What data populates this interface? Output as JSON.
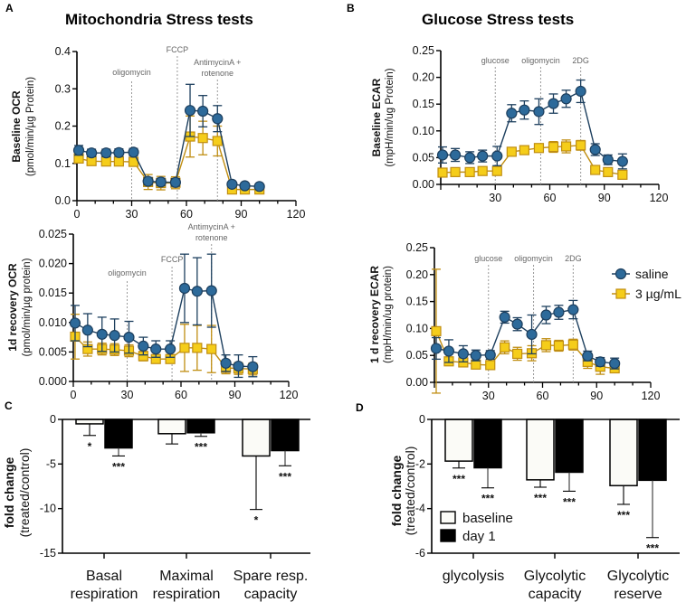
{
  "panels": {
    "A": {
      "letter": "A",
      "title": "Mitochondria Stress tests"
    },
    "B": {
      "letter": "B",
      "title": "Glucose Stress tests"
    },
    "C": {
      "letter": "C"
    },
    "D": {
      "letter": "D"
    }
  },
  "colors": {
    "saline": "#2d6a9a",
    "saline_edge": "#1d3f5e",
    "treated": "#f5cd1a",
    "treated_edge": "#c08e12",
    "baseline_bar": "#fbfbf7",
    "day1_bar": "#000000"
  },
  "chart_data": [
    {
      "type": "line",
      "panel": "A",
      "ylabel": [
        "Baseline OCR",
        "(pmol/min/µg Protein)"
      ],
      "xlim": [
        0,
        120
      ],
      "ylim": [
        0,
        0.4
      ],
      "xticks": [
        "0",
        "30",
        "60",
        "90",
        "120"
      ],
      "yticks": [
        "0.0",
        "0.1",
        "0.2",
        "0.3",
        "0.4"
      ],
      "injections": [
        {
          "x": 30,
          "label": [
            "oligomycin"
          ]
        },
        {
          "x": 55,
          "label": [
            "FCCP"
          ]
        },
        {
          "x": 77,
          "label": [
            "AntimycinA +",
            "rotenone"
          ]
        }
      ],
      "x": [
        1,
        8,
        16,
        23,
        31,
        39,
        46,
        54,
        62,
        69,
        77,
        85,
        92,
        100
      ],
      "series": [
        {
          "name": "saline",
          "y": [
            0.135,
            0.128,
            0.128,
            0.129,
            0.13,
            0.052,
            0.05,
            0.049,
            0.242,
            0.24,
            0.22,
            0.044,
            0.04,
            0.038
          ],
          "err": [
            0.013,
            0.01,
            0.01,
            0.01,
            0.01,
            0.01,
            0.01,
            0.01,
            0.07,
            0.042,
            0.035,
            0.005,
            0.004,
            0.005
          ]
        },
        {
          "name": "3 µg/mL",
          "y": [
            0.113,
            0.106,
            0.105,
            0.105,
            0.104,
            0.05,
            0.047,
            0.048,
            0.172,
            0.168,
            0.16,
            0.03,
            0.03,
            0.03
          ],
          "err": [
            0.01,
            0.01,
            0.01,
            0.01,
            0.01,
            0.02,
            0.018,
            0.016,
            0.055,
            0.045,
            0.04,
            0.005,
            0.005,
            0.005
          ]
        }
      ]
    },
    {
      "type": "line",
      "panel": "A",
      "ylabel": [
        "1d recovery OCR",
        "(pmol/min/µg protein)"
      ],
      "xlim": [
        0,
        120
      ],
      "ylim": [
        0,
        0.025
      ],
      "xticks": [
        "0",
        "30",
        "60",
        "90",
        "120"
      ],
      "yticks": [
        "0.000",
        "0.005",
        "0.010",
        "0.015",
        "0.020",
        "0.025"
      ],
      "injections": [
        {
          "x": 30,
          "label": [
            "oligomycin"
          ]
        },
        {
          "x": 55,
          "label": [
            "FCCP"
          ]
        },
        {
          "x": 77,
          "label": [
            "AntimycinA +",
            "rotenone"
          ]
        }
      ],
      "x": [
        1,
        8,
        16,
        23,
        31,
        39,
        46,
        54,
        62,
        69,
        77,
        85,
        92,
        100
      ],
      "series": [
        {
          "name": "saline",
          "y": [
            0.0099,
            0.0087,
            0.008,
            0.0078,
            0.0075,
            0.006,
            0.0055,
            0.0055,
            0.0158,
            0.0153,
            0.0154,
            0.0031,
            0.0026,
            0.0025
          ],
          "err": [
            0.003,
            0.0028,
            0.0029,
            0.0028,
            0.0027,
            0.0015,
            0.0014,
            0.0014,
            0.0058,
            0.0057,
            0.0062,
            0.0014,
            0.0019,
            0.0017
          ]
        },
        {
          "name": "3 µg/mL",
          "y": [
            0.0076,
            0.0055,
            0.0055,
            0.0054,
            0.0052,
            0.0043,
            0.0038,
            0.0038,
            0.0057,
            0.0057,
            0.0055,
            0.0023,
            0.0022,
            0.0021
          ],
          "err": [
            0.0038,
            0.0012,
            0.001,
            0.001,
            0.001,
            0.0008,
            0.0006,
            0.0006,
            0.004,
            0.0038,
            0.004,
            0.001,
            0.001,
            0.001
          ]
        }
      ]
    },
    {
      "type": "line",
      "panel": "B",
      "ylabel": [
        "Baseline ECAR",
        "(mpH/min/ug Protein)"
      ],
      "xlim": [
        0,
        120
      ],
      "ylim": [
        0,
        0.25
      ],
      "xticks": [
        "",
        "30",
        "60",
        "90",
        "120"
      ],
      "yticks": [
        "0.00",
        "0.05",
        "0.10",
        "0.15",
        "0.20",
        "0.25"
      ],
      "injections": [
        {
          "x": 30,
          "label": [
            "glucose"
          ]
        },
        {
          "x": 55,
          "label": [
            "oligomycin"
          ]
        },
        {
          "x": 77,
          "label": [
            "2DG"
          ]
        }
      ],
      "x": [
        1,
        8,
        16,
        23,
        31,
        39,
        46,
        54,
        62,
        69,
        77,
        85,
        92,
        100
      ],
      "series": [
        {
          "name": "saline",
          "y": [
            0.055,
            0.055,
            0.05,
            0.053,
            0.053,
            0.133,
            0.139,
            0.136,
            0.151,
            0.16,
            0.174,
            0.065,
            0.046,
            0.043
          ],
          "err": [
            0.015,
            0.012,
            0.011,
            0.011,
            0.018,
            0.016,
            0.017,
            0.024,
            0.018,
            0.016,
            0.021,
            0.011,
            0.009,
            0.014
          ]
        },
        {
          "name": "3 µg/mL",
          "y": [
            0.022,
            0.023,
            0.023,
            0.025,
            0.025,
            0.061,
            0.064,
            0.068,
            0.07,
            0.071,
            0.073,
            0.027,
            0.023,
            0.018
          ],
          "err": [
            0.005,
            0.004,
            0.004,
            0.004,
            0.004,
            0.007,
            0.006,
            0.005,
            0.01,
            0.012,
            0.009,
            0.004,
            0.004,
            0.005
          ]
        }
      ]
    },
    {
      "type": "line",
      "panel": "B",
      "ylabel": [
        "1 d recovery ECAR",
        "(mpH/min/ug protein)"
      ],
      "xlim": [
        0,
        120
      ],
      "ylim": [
        0,
        0.25
      ],
      "xticks": [
        "",
        "30",
        "60",
        "90",
        "120"
      ],
      "yticks": [
        "0.00",
        "0.05",
        "0.10",
        "0.15",
        "0.20",
        "0.25"
      ],
      "legend": "top-right",
      "injections": [
        {
          "x": 30,
          "label": [
            "glucose"
          ]
        },
        {
          "x": 55,
          "label": [
            "oligomycin"
          ]
        },
        {
          "x": 77,
          "label": [
            "2DG"
          ]
        }
      ],
      "x": [
        1,
        8,
        16,
        23,
        31,
        39,
        46,
        54,
        62,
        69,
        77,
        85,
        92,
        100
      ],
      "series": [
        {
          "name": "saline",
          "y": [
            0.063,
            0.058,
            0.053,
            0.05,
            0.051,
            0.121,
            0.108,
            0.089,
            0.125,
            0.13,
            0.135,
            0.049,
            0.038,
            0.035
          ],
          "err": [
            0.02,
            0.021,
            0.015,
            0.01,
            0.008,
            0.011,
            0.012,
            0.036,
            0.016,
            0.013,
            0.017,
            0.009,
            0.008,
            0.01
          ]
        },
        {
          "name": "3 µg/mL",
          "y": [
            0.095,
            0.039,
            0.037,
            0.033,
            0.032,
            0.065,
            0.053,
            0.054,
            0.069,
            0.068,
            0.07,
            0.038,
            0.029,
            0.026
          ],
          "err": [
            0.115,
            0.006,
            0.006,
            0.004,
            0.005,
            0.012,
            0.012,
            0.014,
            0.012,
            0.01,
            0.01,
            0.012,
            0.014,
            0.008
          ]
        }
      ]
    },
    {
      "type": "bar",
      "panel": "C",
      "ylabel": [
        "fold change",
        "(treated/control)"
      ],
      "ylim": [
        -15,
        0
      ],
      "yticks": [
        "0",
        "-5",
        "-10",
        "-15"
      ],
      "categories": [
        [
          "Basal",
          "respiration"
        ],
        [
          "Maximal",
          "respiration"
        ],
        [
          "Spare resp.",
          "capacity"
        ]
      ],
      "series": [
        {
          "name": "baseline",
          "values": [
            -0.5,
            -1.6,
            -4.1
          ],
          "err": [
            1.3,
            1.15,
            6.0
          ],
          "sig": [
            "*",
            "",
            "*"
          ]
        },
        {
          "name": "day 1",
          "values": [
            -3.2,
            -1.5,
            -3.5
          ],
          "err": [
            0.9,
            0.4,
            1.7
          ],
          "sig": [
            "***",
            "***",
            "***"
          ]
        }
      ]
    },
    {
      "type": "bar",
      "panel": "D",
      "ylabel": [
        "fold change",
        "(treated/control)"
      ],
      "ylim": [
        -6,
        0
      ],
      "yticks": [
        "0",
        "-2",
        "-4",
        "-6"
      ],
      "legend": "bottom-left",
      "categories": [
        [
          "glycolysis"
        ],
        [
          "Glycolytic",
          "capacity"
        ],
        [
          "Glycolytic",
          "reserve"
        ]
      ],
      "series": [
        {
          "name": "baseline",
          "values": [
            -1.87,
            -2.71,
            -2.97
          ],
          "err": [
            0.31,
            0.33,
            0.84
          ],
          "sig": [
            "***",
            "***",
            "***"
          ]
        },
        {
          "name": "day 1",
          "values": [
            -2.17,
            -2.37,
            -2.73
          ],
          "err": [
            0.9,
            0.85,
            2.57
          ],
          "sig": [
            "***",
            "***",
            "***"
          ]
        }
      ]
    }
  ]
}
